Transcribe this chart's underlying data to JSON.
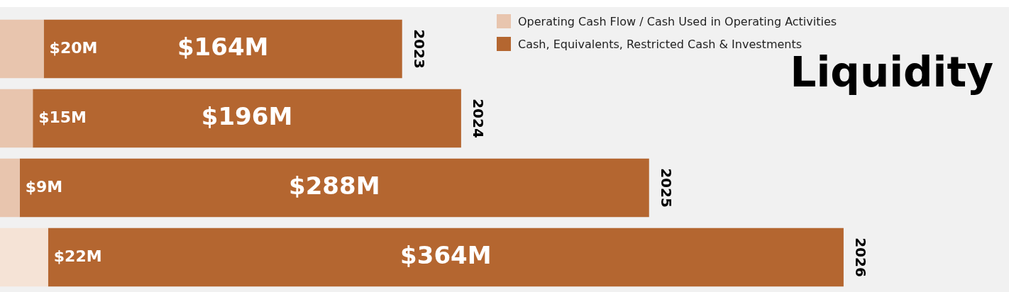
{
  "chart_data": {
    "type": "bar",
    "orientation": "horizontal",
    "stacked": true,
    "title": "Liquidity",
    "categories": [
      "2023",
      "2024",
      "2025",
      "2026"
    ],
    "series": [
      {
        "name": "Operating Cash Flow / Cash Used in Operating Activities",
        "color": "#e8c5ae",
        "colors": [
          "#e8c5ae",
          "#e8c5ae",
          "#e8c5ae",
          "#f5e3d6"
        ],
        "values": [
          20,
          15,
          9,
          22
        ],
        "value_labels": [
          "$20M",
          "$15M",
          "$9M",
          "$22M"
        ]
      },
      {
        "name": "Cash, Equivalents, Restricted Cash & Investments",
        "color": "#b46630",
        "values": [
          164,
          196,
          288,
          364
        ],
        "value_labels": [
          "$164M",
          "$196M",
          "$288M",
          "$364M"
        ]
      }
    ],
    "legend": "top"
  }
}
